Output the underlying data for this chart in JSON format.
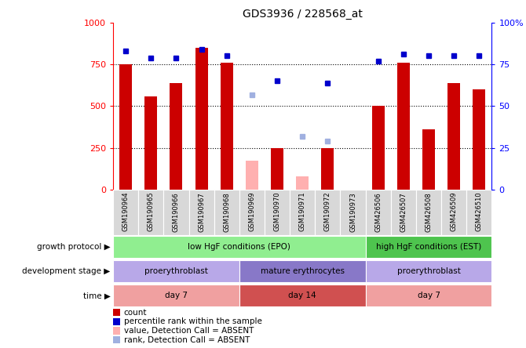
{
  "title": "GDS3936 / 228568_at",
  "samples": [
    "GSM190964",
    "GSM190965",
    "GSM190966",
    "GSM190967",
    "GSM190968",
    "GSM190969",
    "GSM190970",
    "GSM190971",
    "GSM190972",
    "GSM190973",
    "GSM426506",
    "GSM426507",
    "GSM426508",
    "GSM426509",
    "GSM426510"
  ],
  "count_present": [
    750,
    560,
    640,
    850,
    760,
    null,
    250,
    null,
    250,
    null,
    500,
    760,
    360,
    640,
    600
  ],
  "count_absent": [
    null,
    null,
    null,
    null,
    null,
    175,
    null,
    80,
    null,
    null,
    null,
    null,
    null,
    null,
    null
  ],
  "rank_present": [
    83,
    79,
    79,
    84,
    80,
    null,
    65,
    null,
    64,
    null,
    77,
    81,
    80,
    80,
    80
  ],
  "rank_absent": [
    null,
    null,
    null,
    null,
    null,
    57,
    null,
    32,
    29,
    null,
    null,
    null,
    null,
    null,
    null
  ],
  "growth_protocol_spans": [
    {
      "start": 0,
      "end": 10,
      "label": "low HgF conditions (EPO)",
      "color": "#90ee90"
    },
    {
      "start": 10,
      "end": 15,
      "label": "high HgF conditions (EST)",
      "color": "#4ec44e"
    }
  ],
  "development_stage_spans": [
    {
      "start": 0,
      "end": 5,
      "label": "proerythroblast",
      "color": "#b8a8e8"
    },
    {
      "start": 5,
      "end": 10,
      "label": "mature erythrocytes",
      "color": "#8878c8"
    },
    {
      "start": 10,
      "end": 15,
      "label": "proerythroblast",
      "color": "#b8a8e8"
    }
  ],
  "time_spans": [
    {
      "start": 0,
      "end": 5,
      "label": "day 7",
      "color": "#f0a0a0"
    },
    {
      "start": 5,
      "end": 10,
      "label": "day 14",
      "color": "#d05050"
    },
    {
      "start": 10,
      "end": 15,
      "label": "day 7",
      "color": "#f0a0a0"
    }
  ],
  "ylim_left": [
    0,
    1000
  ],
  "ylim_right": [
    0,
    100
  ],
  "yticks_left": [
    0,
    250,
    500,
    750,
    1000
  ],
  "yticks_right": [
    0,
    25,
    50,
    75,
    100
  ],
  "bar_color_present": "#cc0000",
  "bar_color_absent": "#ffb0b0",
  "rank_color_present": "#0000cc",
  "rank_color_absent": "#a0b0e0",
  "annotation_row_labels": [
    "growth protocol",
    "development stage",
    "time"
  ],
  "legend_items": [
    {
      "label": "count",
      "color": "#cc0000"
    },
    {
      "label": "percentile rank within the sample",
      "color": "#0000cc"
    },
    {
      "label": "value, Detection Call = ABSENT",
      "color": "#ffb0b0"
    },
    {
      "label": "rank, Detection Call = ABSENT",
      "color": "#a0b0e0"
    }
  ]
}
